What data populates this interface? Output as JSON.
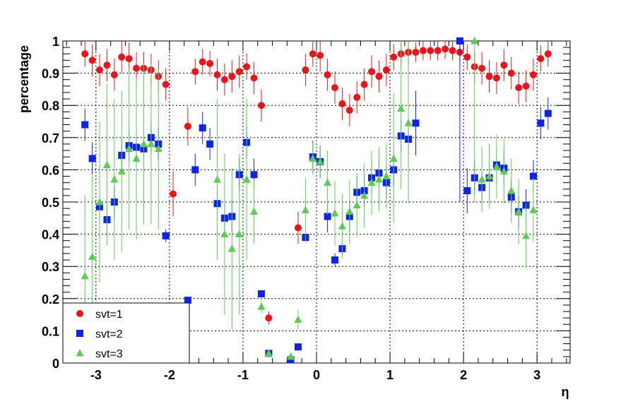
{
  "chart_data": {
    "type": "scatter",
    "xlabel": "η",
    "ylabel": "percentage",
    "xlim": [
      -3.45,
      3.45
    ],
    "ylim": [
      0,
      1
    ],
    "grid": true,
    "legend_position": "bottom-left",
    "x_ticks": [
      {
        "value": -3,
        "label": "-3"
      },
      {
        "value": -2,
        "label": "-2"
      },
      {
        "value": -1,
        "label": "-1"
      },
      {
        "value": 0,
        "label": "0"
      },
      {
        "value": 1,
        "label": "1"
      },
      {
        "value": 2,
        "label": "2"
      },
      {
        "value": 3,
        "label": "3"
      }
    ],
    "y_ticks": [
      {
        "value": 0,
        "label": "0"
      },
      {
        "value": 0.1,
        "label": "0.1"
      },
      {
        "value": 0.2,
        "label": "0.2"
      },
      {
        "value": 0.3,
        "label": "0.3"
      },
      {
        "value": 0.4,
        "label": "0.4"
      },
      {
        "value": 0.5,
        "label": "0.5"
      },
      {
        "value": 0.6,
        "label": "0.6"
      },
      {
        "value": 0.7,
        "label": "0.7"
      },
      {
        "value": 0.8,
        "label": "0.8"
      },
      {
        "value": 0.9,
        "label": "0.9"
      },
      {
        "value": 1,
        "label": "1"
      }
    ],
    "series": [
      {
        "name": "svt=1",
        "marker": "circle",
        "color": "#e8161b",
        "points": [
          [
            -3.15,
            0.96,
            0.04
          ],
          [
            -3.05,
            0.94,
            0.05
          ],
          [
            -2.95,
            0.91,
            0.05
          ],
          [
            -2.85,
            0.925,
            0.05
          ],
          [
            -2.75,
            0.895,
            0.05
          ],
          [
            -2.65,
            0.95,
            0.05
          ],
          [
            -2.55,
            0.945,
            0.05
          ],
          [
            -2.45,
            0.915,
            0.05
          ],
          [
            -2.35,
            0.915,
            0.05
          ],
          [
            -2.25,
            0.91,
            0.05
          ],
          [
            -2.15,
            0.89,
            0.05
          ],
          [
            -2.05,
            0.865,
            0.05
          ],
          [
            -1.95,
            0.525,
            0.07
          ],
          [
            -1.75,
            0.735,
            0.06
          ],
          [
            -1.65,
            0.905,
            0.04
          ],
          [
            -1.55,
            0.935,
            0.04
          ],
          [
            -1.45,
            0.93,
            0.04
          ],
          [
            -1.35,
            0.895,
            0.05
          ],
          [
            -1.25,
            0.88,
            0.05
          ],
          [
            -1.15,
            0.89,
            0.05
          ],
          [
            -1.05,
            0.905,
            0.05
          ],
          [
            -0.95,
            0.92,
            0.04
          ],
          [
            -0.85,
            0.885,
            0.05
          ],
          [
            -0.75,
            0.8,
            0.05
          ],
          [
            -0.65,
            0.14,
            0.02
          ],
          [
            -0.25,
            0.42,
            0.05
          ],
          [
            -0.15,
            0.91,
            0.05
          ],
          [
            -0.05,
            0.96,
            0.04
          ],
          [
            0.05,
            0.955,
            0.05
          ],
          [
            0.15,
            0.895,
            0.05
          ],
          [
            0.25,
            0.855,
            0.05
          ],
          [
            0.35,
            0.805,
            0.05
          ],
          [
            0.45,
            0.785,
            0.05
          ],
          [
            0.55,
            0.825,
            0.05
          ],
          [
            0.65,
            0.865,
            0.05
          ],
          [
            0.75,
            0.905,
            0.05
          ],
          [
            0.85,
            0.89,
            0.05
          ],
          [
            0.95,
            0.91,
            0.05
          ],
          [
            1.05,
            0.95,
            0.04
          ],
          [
            1.15,
            0.96,
            0.04
          ],
          [
            1.25,
            0.965,
            0.04
          ],
          [
            1.35,
            0.965,
            0.03
          ],
          [
            1.45,
            0.97,
            0.03
          ],
          [
            1.55,
            0.97,
            0.03
          ],
          [
            1.65,
            0.97,
            0.03
          ],
          [
            1.75,
            0.975,
            0.03
          ],
          [
            1.85,
            0.97,
            0.03
          ],
          [
            1.95,
            0.965,
            0.03
          ],
          [
            2.05,
            0.95,
            0.04
          ],
          [
            2.15,
            0.92,
            0.05
          ],
          [
            2.25,
            0.915,
            0.05
          ],
          [
            2.35,
            0.89,
            0.05
          ],
          [
            2.45,
            0.885,
            0.05
          ],
          [
            2.55,
            0.925,
            0.05
          ],
          [
            2.65,
            0.9,
            0.05
          ],
          [
            2.75,
            0.855,
            0.05
          ],
          [
            2.85,
            0.86,
            0.05
          ],
          [
            2.95,
            0.895,
            0.05
          ],
          [
            3.05,
            0.945,
            0.04
          ],
          [
            3.15,
            0.96,
            0.04
          ]
        ]
      },
      {
        "name": "svt=2",
        "marker": "square",
        "color": "#0e23e4",
        "points": [
          [
            -3.15,
            0.74,
            0.05
          ],
          [
            -3.05,
            0.635,
            0.05
          ],
          [
            -2.95,
            0.485,
            0.05
          ],
          [
            -2.85,
            0.445,
            0.05
          ],
          [
            -2.75,
            0.5,
            0.05
          ],
          [
            -2.65,
            0.645,
            0.05
          ],
          [
            -2.55,
            0.675,
            0.05
          ],
          [
            -2.45,
            0.67,
            0.05
          ],
          [
            -2.35,
            0.665,
            0.05
          ],
          [
            -2.25,
            0.7,
            0.05
          ],
          [
            -2.15,
            0.68,
            0.05
          ],
          [
            -2.05,
            0.395,
            0.02
          ],
          [
            -1.75,
            0.195,
            0.01
          ],
          [
            -1.65,
            0.6,
            0.05
          ],
          [
            -1.55,
            0.73,
            0.05
          ],
          [
            -1.45,
            0.68,
            0.05
          ],
          [
            -1.35,
            0.495,
            0.05
          ],
          [
            -1.25,
            0.45,
            0.05
          ],
          [
            -1.15,
            0.455,
            0.05
          ],
          [
            -1.05,
            0.585,
            0.05
          ],
          [
            -0.95,
            0.685,
            0.05
          ],
          [
            -0.85,
            0.585,
            0.05
          ],
          [
            -0.75,
            0.215,
            0.01
          ],
          [
            -0.65,
            0.03,
            0.01
          ],
          [
            -0.35,
            0.01,
            0.005
          ],
          [
            -0.25,
            0.05,
            0.005
          ],
          [
            -0.15,
            0.39,
            0.01
          ],
          [
            -0.05,
            0.64,
            0.05
          ],
          [
            0.05,
            0.625,
            0.05
          ],
          [
            0.15,
            0.455,
            0.05
          ],
          [
            0.25,
            0.32,
            0.02
          ],
          [
            0.35,
            0.355,
            0.02
          ],
          [
            0.45,
            0.455,
            0.05
          ],
          [
            0.55,
            0.53,
            0.05
          ],
          [
            0.65,
            0.535,
            0.05
          ],
          [
            0.75,
            0.575,
            0.05
          ],
          [
            0.85,
            0.59,
            0.05
          ],
          [
            0.95,
            0.56,
            0.05
          ],
          [
            1.05,
            0.6,
            0.05
          ],
          [
            1.15,
            0.705,
            0.05
          ],
          [
            1.25,
            0.695,
            0.05
          ],
          [
            1.35,
            0.745,
            0.1
          ],
          [
            1.95,
            1.0,
            0.5
          ],
          [
            2.05,
            0.535,
            0.07
          ],
          [
            2.15,
            0.575,
            0.05
          ],
          [
            2.25,
            0.545,
            0.05
          ],
          [
            2.35,
            0.575,
            0.05
          ],
          [
            2.45,
            0.615,
            0.05
          ],
          [
            2.55,
            0.605,
            0.05
          ],
          [
            2.65,
            0.515,
            0.05
          ],
          [
            2.75,
            0.47,
            0.05
          ],
          [
            2.85,
            0.49,
            0.05
          ],
          [
            2.95,
            0.58,
            0.05
          ],
          [
            3.05,
            0.745,
            0.05
          ],
          [
            3.15,
            0.775,
            0.05
          ]
        ]
      },
      {
        "name": "svt=3",
        "marker": "triangle",
        "color": "#5ecb57",
        "points": [
          [
            -3.15,
            0.27,
            0.25
          ],
          [
            -3.05,
            0.33,
            0.25
          ],
          [
            -2.95,
            0.5,
            0.25
          ],
          [
            -2.85,
            0.615,
            0.25
          ],
          [
            -2.75,
            0.57,
            0.25
          ],
          [
            -2.65,
            0.595,
            0.25
          ],
          [
            -2.55,
            0.665,
            0.25
          ],
          [
            -2.45,
            0.635,
            0.25
          ],
          [
            -2.35,
            0.68,
            0.25
          ],
          [
            -2.25,
            0.68,
            0.25
          ],
          [
            -2.15,
            0.665,
            0.25
          ],
          [
            -1.35,
            0.57,
            0.25
          ],
          [
            -1.25,
            0.4,
            0.25
          ],
          [
            -1.15,
            0.355,
            0.25
          ],
          [
            -1.05,
            0.4,
            0.25
          ],
          [
            -0.95,
            0.57,
            0.25
          ],
          [
            -0.85,
            0.47,
            0.1
          ],
          [
            -0.75,
            0.175,
            0.02
          ],
          [
            -0.65,
            0.03,
            0.01
          ],
          [
            -0.35,
            0.02,
            0.01
          ],
          [
            -0.25,
            0.135,
            0.03
          ],
          [
            -0.15,
            0.475,
            0.1
          ],
          [
            -0.05,
            0.635,
            0.05
          ],
          [
            0.05,
            0.625,
            0.05
          ],
          [
            0.15,
            0.56,
            0.1
          ],
          [
            0.25,
            0.465,
            0.1
          ],
          [
            0.35,
            0.425,
            0.1
          ],
          [
            0.45,
            0.47,
            0.1
          ],
          [
            0.55,
            0.49,
            0.1
          ],
          [
            0.65,
            0.52,
            0.1
          ],
          [
            0.75,
            0.56,
            0.1
          ],
          [
            0.85,
            0.57,
            0.1
          ],
          [
            0.95,
            0.58,
            0.1
          ],
          [
            1.05,
            0.635,
            0.2
          ],
          [
            1.15,
            0.79,
            0.25
          ],
          [
            1.25,
            0.745,
            0.25
          ],
          [
            2.15,
            1.0,
            0.5
          ],
          [
            2.25,
            0.57,
            0.1
          ],
          [
            2.35,
            0.58,
            0.1
          ],
          [
            2.45,
            0.61,
            0.1
          ],
          [
            2.55,
            0.595,
            0.1
          ],
          [
            2.65,
            0.535,
            0.1
          ],
          [
            2.75,
            0.47,
            0.1
          ],
          [
            2.85,
            0.395,
            0.1
          ],
          [
            2.95,
            0.475,
            0.1
          ]
        ]
      }
    ]
  }
}
